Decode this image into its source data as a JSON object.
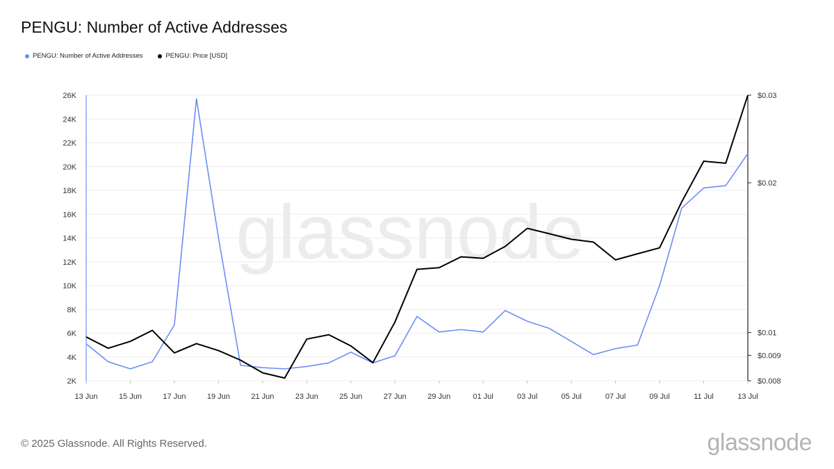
{
  "title": "PENGU: Number of Active Addresses",
  "footer": "© 2025 Glassnode. All Rights Reserved.",
  "brand": "glassnode",
  "watermark": "glassnode",
  "legend": [
    {
      "label": "PENGU: Number of Active Addresses",
      "color": "#6b8df5"
    },
    {
      "label": "PENGU: Price [USD]",
      "color": "#000000"
    }
  ],
  "chart_data": {
    "type": "line",
    "x_tick_labels": [
      "13 Jun",
      "15 Jun",
      "17 Jun",
      "19 Jun",
      "21 Jun",
      "23 Jun",
      "25 Jun",
      "27 Jun",
      "29 Jun",
      "01 Jul",
      "03 Jul",
      "05 Jul",
      "07 Jul",
      "09 Jul",
      "11 Jul",
      "13 Jul"
    ],
    "x": [
      "13 Jun",
      "14 Jun",
      "15 Jun",
      "16 Jun",
      "17 Jun",
      "18 Jun",
      "19 Jun",
      "20 Jun",
      "21 Jun",
      "22 Jun",
      "23 Jun",
      "24 Jun",
      "25 Jun",
      "26 Jun",
      "27 Jun",
      "28 Jun",
      "29 Jun",
      "30 Jun",
      "01 Jul",
      "02 Jul",
      "03 Jul",
      "04 Jul",
      "05 Jul",
      "06 Jul",
      "07 Jul",
      "08 Jul",
      "09 Jul",
      "10 Jul",
      "11 Jul",
      "12 Jul",
      "13 Jul"
    ],
    "left_axis": {
      "ticks": [
        2000,
        4000,
        6000,
        8000,
        10000,
        12000,
        14000,
        16000,
        18000,
        20000,
        22000,
        24000,
        26000
      ],
      "tick_labels": [
        "2K",
        "4K",
        "6K",
        "8K",
        "10K",
        "12K",
        "14K",
        "16K",
        "18K",
        "20K",
        "22K",
        "24K",
        "26K"
      ],
      "ylim": [
        2000,
        26000
      ]
    },
    "right_axis": {
      "scale": "log",
      "ticks": [
        0.008,
        0.009,
        0.01,
        0.02,
        0.03
      ],
      "tick_labels": [
        "$0.008",
        "$0.009",
        "$0.01",
        "$0.02",
        "$0.03"
      ],
      "ylim": [
        0.008,
        0.03
      ]
    },
    "grid": true,
    "legend_position": "top-left",
    "series": [
      {
        "name": "PENGU: Number of Active Addresses",
        "axis": "left",
        "color": "#6b8df5",
        "values": [
          5100,
          3600,
          3000,
          3600,
          6700,
          25700,
          14000,
          3300,
          3100,
          3000,
          3200,
          3500,
          4400,
          3500,
          4100,
          7400,
          6100,
          6300,
          6100,
          7900,
          7000,
          6400,
          5300,
          4200,
          4700,
          5000,
          10000,
          16500,
          18200,
          18400,
          21100
        ]
      },
      {
        "name": "PENGU: Price [USD]",
        "axis": "right",
        "color": "#000000",
        "values": [
          0.0098,
          0.0093,
          0.0096,
          0.0101,
          0.0091,
          0.0095,
          0.0092,
          0.0088,
          0.0083,
          0.0081,
          0.0097,
          0.0099,
          0.0094,
          0.0087,
          0.0105,
          0.0134,
          0.0135,
          0.0142,
          0.0141,
          0.0149,
          0.0162,
          0.0158,
          0.0154,
          0.0152,
          0.014,
          0.0144,
          0.0148,
          0.0183,
          0.0221,
          0.0219,
          0.03
        ]
      }
    ]
  }
}
